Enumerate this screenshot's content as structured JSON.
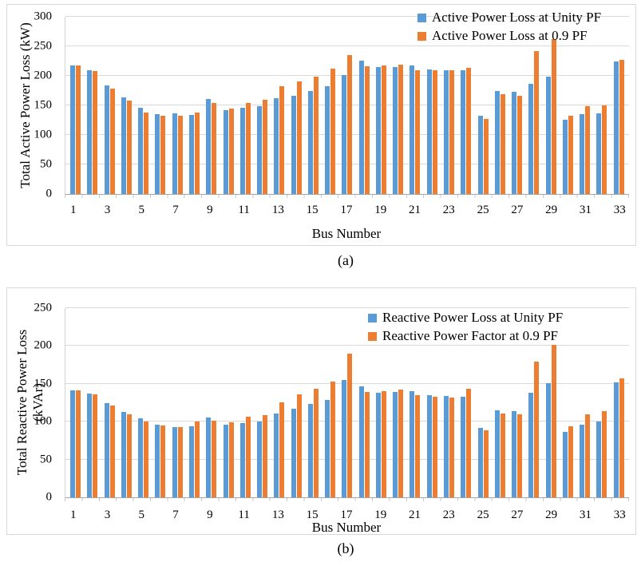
{
  "figure": {
    "background": "#ffffff",
    "colors": {
      "series1": "#5B9BD5",
      "series2": "#ED7D31",
      "gridline": "#D9D9D9",
      "axis_line": "#A6A6A6",
      "chart_border": "#D9D9D9",
      "text": "#000000"
    }
  },
  "chart_data": [
    {
      "type": "bar",
      "panel": "a",
      "caption": "(a)",
      "xlabel": "Bus Number",
      "ylabel": "Total Active Power Loss (kW)",
      "ylabel_line2": "",
      "ylim": [
        0,
        300
      ],
      "ytick_step": 50,
      "grid": true,
      "legend_position": "top-right-inside",
      "xtick_labels": "odd categories only",
      "categories": [
        1,
        2,
        3,
        4,
        5,
        6,
        7,
        8,
        9,
        10,
        11,
        12,
        13,
        14,
        15,
        16,
        17,
        18,
        19,
        20,
        21,
        22,
        23,
        24,
        25,
        26,
        27,
        28,
        29,
        30,
        31,
        32,
        33
      ],
      "series": [
        {
          "name": "Active Power Loss at Unity PF",
          "color": "#5B9BD5",
          "values": [
            217,
            209,
            184,
            164,
            146,
            135,
            136,
            134,
            161,
            142,
            146,
            148,
            162,
            166,
            174,
            182,
            201,
            226,
            215,
            215,
            217,
            211,
            210,
            209,
            132,
            175,
            173,
            186,
            198,
            126,
            135,
            137,
            224
          ]
        },
        {
          "name": "Active Power Loss at 0.9 PF",
          "color": "#ED7D31",
          "values": [
            217,
            208,
            179,
            158,
            138,
            132,
            132,
            138,
            154,
            145,
            154,
            159,
            183,
            190,
            198,
            212,
            235,
            216,
            218,
            219,
            210,
            209,
            209,
            213,
            127,
            169,
            166,
            242,
            262,
            132,
            148,
            150,
            227
          ]
        }
      ]
    },
    {
      "type": "bar",
      "panel": "b",
      "caption": "(b)",
      "xlabel": "Bus Number",
      "ylabel": "Total Reactive Power Loss",
      "ylabel_line2": "(kVAr)",
      "ylim": [
        0,
        250
      ],
      "ytick_step": 50,
      "grid": true,
      "legend_position": "top-right-inside",
      "xtick_labels": "odd categories only",
      "categories": [
        1,
        2,
        3,
        4,
        5,
        6,
        7,
        8,
        9,
        10,
        11,
        12,
        13,
        14,
        15,
        16,
        17,
        18,
        19,
        20,
        21,
        22,
        23,
        24,
        25,
        26,
        27,
        28,
        29,
        30,
        31,
        32,
        33
      ],
      "series": [
        {
          "name": "Reactive Power Loss at Unity PF",
          "color": "#5B9BD5",
          "values": [
            141,
            137,
            124,
            113,
            104,
            96,
            93,
            94,
            105,
            96,
            98,
            100,
            111,
            117,
            123,
            129,
            155,
            147,
            138,
            139,
            140,
            135,
            134,
            133,
            92,
            115,
            114,
            138,
            151,
            87,
            96,
            100,
            152
          ]
        },
        {
          "name": "Reactive Power Factor at 0.9 PF",
          "color": "#ED7D31",
          "values": [
            141,
            136,
            121,
            110,
            100,
            95,
            93,
            100,
            101,
            99,
            107,
            109,
            126,
            136,
            144,
            153,
            190,
            139,
            140,
            142,
            135,
            133,
            132,
            143,
            89,
            111,
            110,
            179,
            202,
            94,
            110,
            114,
            157
          ]
        }
      ]
    }
  ]
}
